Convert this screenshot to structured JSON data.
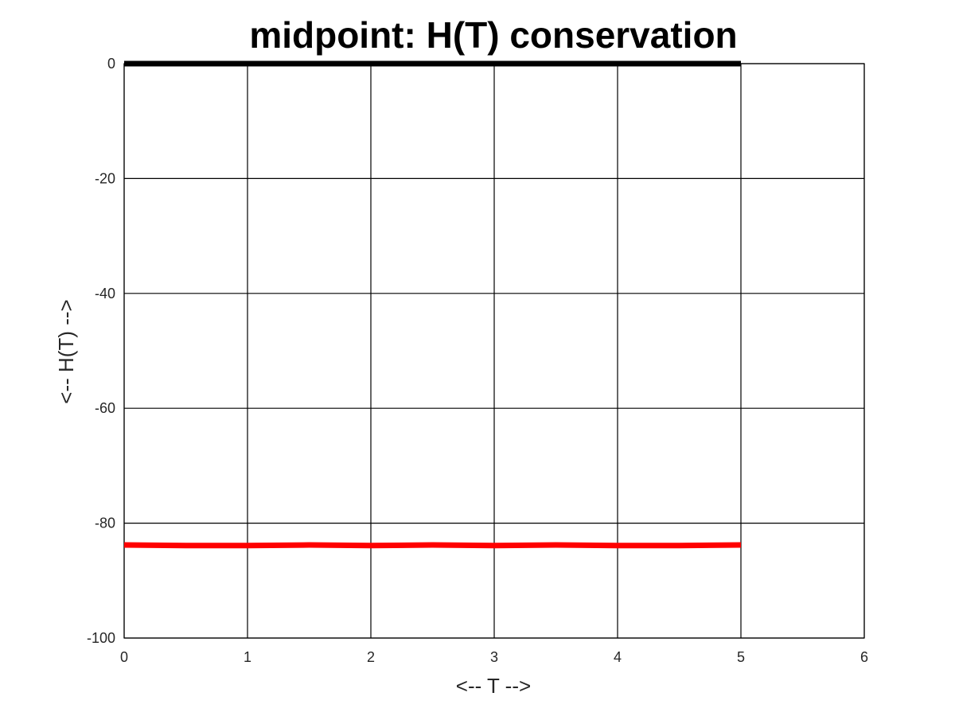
{
  "chart_data": {
    "type": "line",
    "title": "midpoint: H(T) conservation",
    "xlabel": "<-- T -->",
    "ylabel": "<-- H(T) -->",
    "xlim": [
      0,
      6
    ],
    "ylim": [
      -100,
      0
    ],
    "x_ticks": [
      0,
      1,
      2,
      3,
      4,
      5,
      6
    ],
    "y_ticks": [
      0,
      -20,
      -40,
      -60,
      -80,
      -100
    ],
    "x_tick_labels": [
      "0",
      "1",
      "2",
      "3",
      "4",
      "5",
      "6"
    ],
    "y_tick_labels": [
      "0",
      "-20",
      "-40",
      "-60",
      "-80",
      "-100"
    ],
    "grid": true,
    "series": [
      {
        "color": "#000000",
        "x": [
          0,
          1,
          2,
          3,
          4,
          5
        ],
        "y": [
          0,
          0,
          0,
          0,
          0,
          0
        ]
      },
      {
        "color": "#ff0000",
        "x": [
          0,
          0.5,
          1,
          1.5,
          2,
          2.5,
          3,
          3.5,
          4,
          4.5,
          5
        ],
        "y": [
          -83.8,
          -83.9,
          -83.9,
          -83.8,
          -83.9,
          -83.8,
          -83.9,
          -83.8,
          -83.9,
          -83.9,
          -83.8
        ]
      }
    ]
  }
}
